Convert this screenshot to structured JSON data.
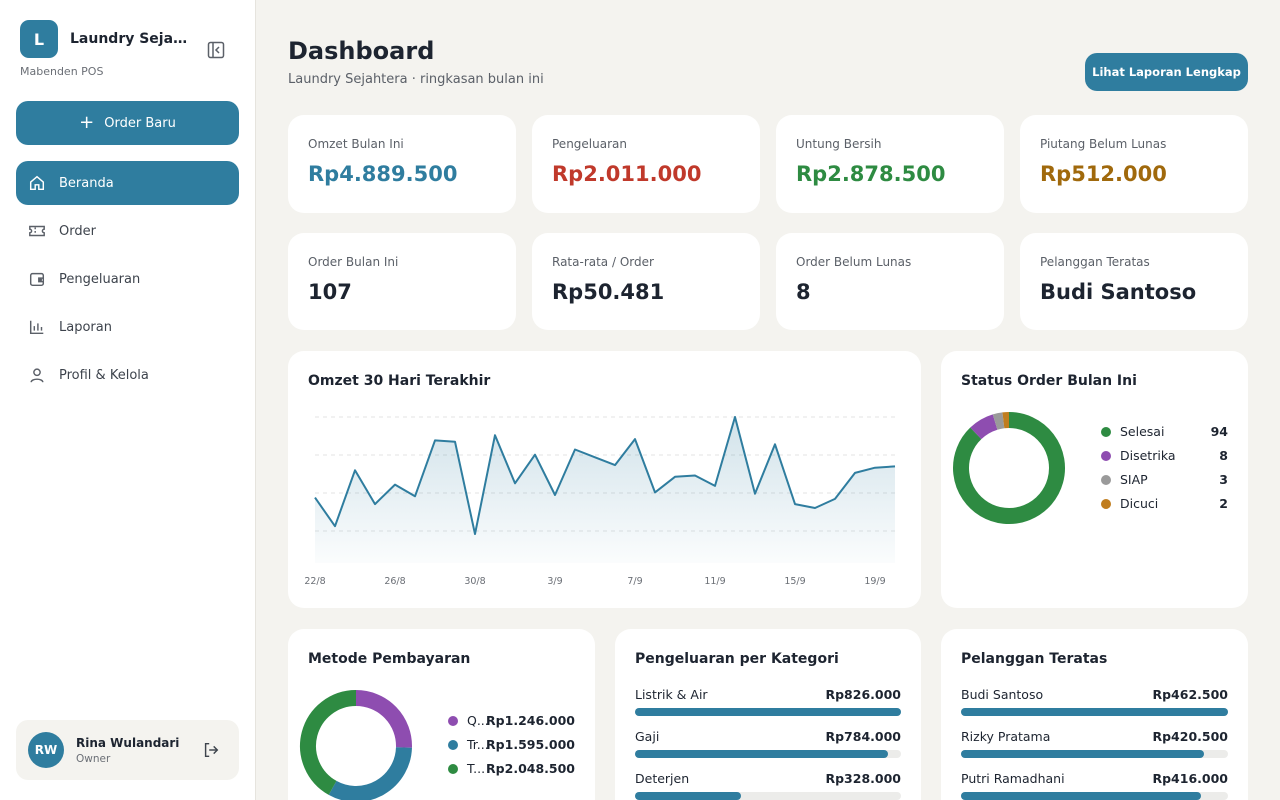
{
  "sidebar": {
    "logo_letter": "L",
    "app_name": "Laundry Sejahtera",
    "subtitle": "Mabenden POS",
    "order_button": "Order Baru",
    "items": [
      {
        "label": "Beranda",
        "icon": "home-icon",
        "active": true
      },
      {
        "label": "Order",
        "icon": "ticket-icon",
        "active": false
      },
      {
        "label": "Pengeluaran",
        "icon": "wallet-icon",
        "active": false
      },
      {
        "label": "Laporan",
        "icon": "bar-chart-icon",
        "active": false
      },
      {
        "label": "Profil & Kelola",
        "icon": "user-icon",
        "active": false
      }
    ],
    "user": {
      "initials": "RW",
      "name": "Rina Wulandari",
      "role": "Owner"
    }
  },
  "header": {
    "title": "Dashboard",
    "subtitle": "Laundry Sejahtera · ringkasan bulan ini",
    "report_button": "Lihat Laporan Lengkap"
  },
  "stats": [
    {
      "label": "Omzet Bulan Ini",
      "value": "Rp4.889.500",
      "color": "#2f7d9f"
    },
    {
      "label": "Pengeluaran",
      "value": "Rp2.011.000",
      "color": "#c0392b"
    },
    {
      "label": "Untung Bersih",
      "value": "Rp2.878.500",
      "color": "#2e8b42"
    },
    {
      "label": "Piutang Belum Lunas",
      "value": "Rp512.000",
      "color": "#a0690c"
    },
    {
      "label": "Order Bulan Ini",
      "value": "107",
      "color": "#1d2430"
    },
    {
      "label": "Rata-rata / Order",
      "value": "Rp50.481",
      "color": "#1d2430"
    },
    {
      "label": "Order Belum Lunas",
      "value": "8",
      "color": "#1d2430"
    },
    {
      "label": "Pelanggan Teratas",
      "value": "Budi Santoso",
      "color": "#1d2430"
    }
  ],
  "omzet_chart": {
    "title": "Omzet 30 Hari Terakhir",
    "chart_data": {
      "type": "area",
      "x_ticks": [
        "22/8",
        "26/8",
        "30/8",
        "3/9",
        "7/9",
        "11/9",
        "15/9",
        "19/9"
      ],
      "values": [
        0.38,
        0.16,
        0.59,
        0.33,
        0.48,
        0.39,
        0.82,
        0.81,
        0.1,
        0.86,
        0.49,
        0.71,
        0.4,
        0.75,
        0.69,
        0.63,
        0.83,
        0.42,
        0.54,
        0.55,
        0.47,
        1.0,
        0.41,
        0.79,
        0.33,
        0.3,
        0.37,
        0.57,
        0.61,
        0.62
      ],
      "grid": true,
      "color": "#2f7d9f"
    }
  },
  "status_chart": {
    "title": "Status Order Bulan Ini",
    "chart_data": {
      "type": "pie",
      "labels": [
        "Selesai",
        "Disetrika",
        "SIAP",
        "Dicuci"
      ],
      "values": [
        94,
        8,
        3,
        2
      ],
      "colors": [
        "#2e8b42",
        "#8e4db0",
        "#9a9a9a",
        "#c07d1e"
      ]
    }
  },
  "payment_chart": {
    "title": "Metode Pembayaran",
    "labels": [
      "Q...",
      "Tr...",
      "T..."
    ],
    "amounts": [
      "Rp1.246.000",
      "Rp1.595.000",
      "Rp2.048.500"
    ],
    "chart_data": {
      "type": "pie",
      "values": [
        1246000,
        1595000,
        2048500
      ],
      "colors": [
        "#8e4db0",
        "#2f7d9f",
        "#2e8b42"
      ]
    }
  },
  "expense_categories": {
    "title": "Pengeluaran per Kategori",
    "items": [
      {
        "label": "Listrik & Air",
        "amount": "Rp826.000",
        "fraction": 1.0
      },
      {
        "label": "Gaji",
        "amount": "Rp784.000",
        "fraction": 0.95
      },
      {
        "label": "Deterjen",
        "amount": "Rp328.000",
        "fraction": 0.4
      }
    ]
  },
  "top_customers": {
    "title": "Pelanggan Teratas",
    "items": [
      {
        "label": "Budi Santoso",
        "amount": "Rp462.500",
        "fraction": 1.0
      },
      {
        "label": "Rizky Pratama",
        "amount": "Rp420.500",
        "fraction": 0.91
      },
      {
        "label": "Putri Ramadhani",
        "amount": "Rp416.000",
        "fraction": 0.9
      }
    ]
  }
}
